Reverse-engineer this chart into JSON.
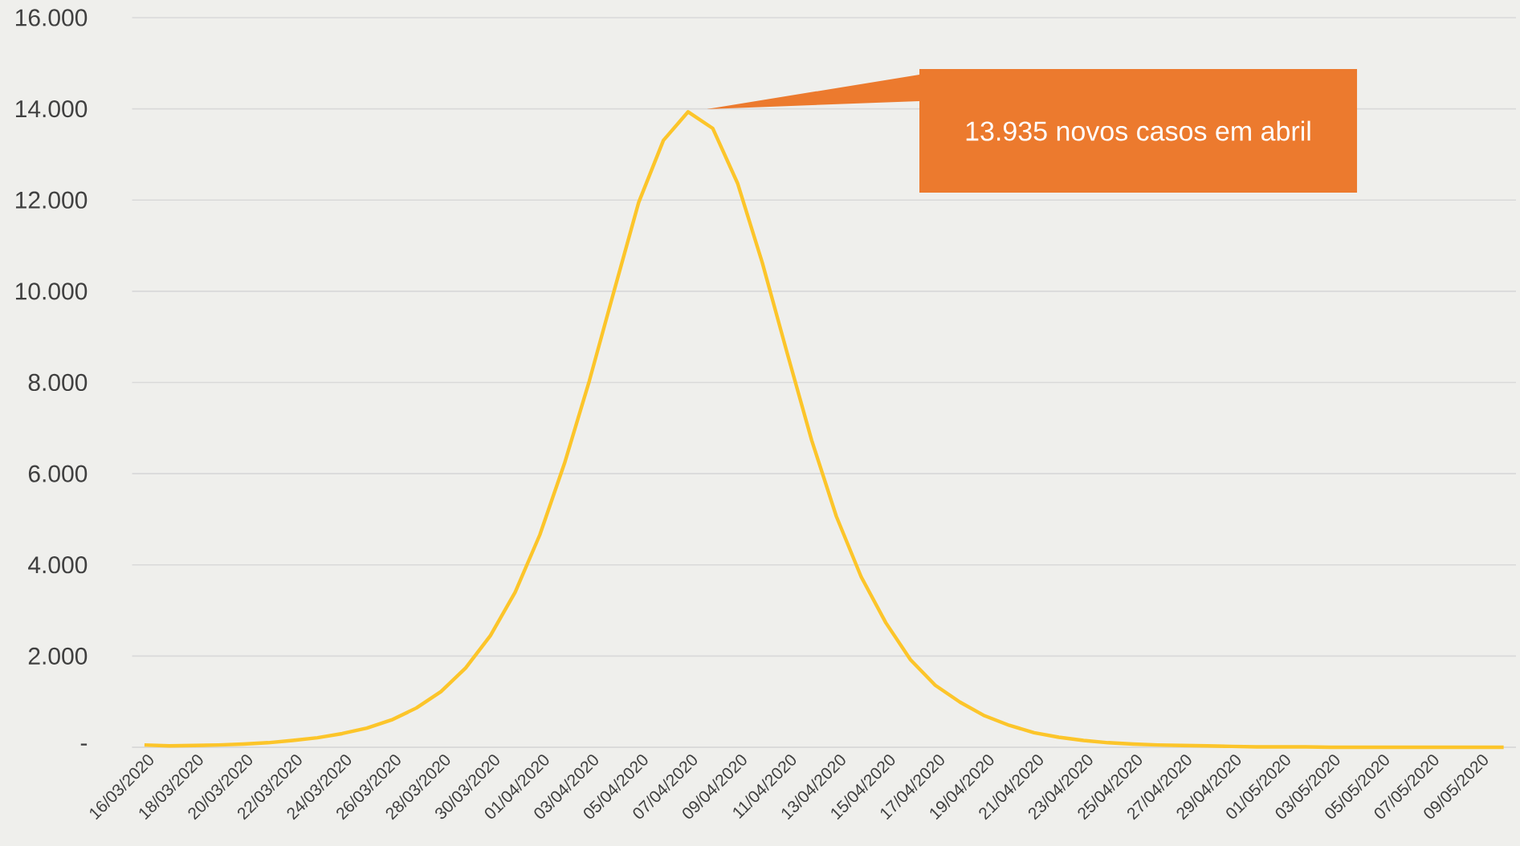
{
  "chart_data": {
    "type": "line",
    "categories": [
      "16/03/2020",
      null,
      "18/03/2020",
      null,
      "20/03/2020",
      null,
      "22/03/2020",
      null,
      "24/03/2020",
      null,
      "26/03/2020",
      null,
      "28/03/2020",
      null,
      "30/03/2020",
      null,
      "01/04/2020",
      null,
      "03/04/2020",
      null,
      "05/04/2020",
      null,
      "07/04/2020",
      null,
      "09/04/2020",
      null,
      "11/04/2020",
      null,
      "13/04/2020",
      null,
      "15/04/2020",
      null,
      "17/04/2020",
      null,
      "19/04/2020",
      null,
      "21/04/2020",
      null,
      "23/04/2020",
      null,
      "25/04/2020",
      null,
      "27/04/2020",
      null,
      "29/04/2020",
      null,
      "01/05/2020",
      null,
      "03/05/2020",
      null,
      "05/05/2020",
      null,
      "07/05/2020",
      null,
      "09/05/2020",
      null
    ],
    "values": [
      50,
      30,
      40,
      50,
      70,
      100,
      150,
      210,
      300,
      420,
      600,
      860,
      1220,
      1740,
      2450,
      3400,
      4660,
      6230,
      8030,
      10000,
      11950,
      13310,
      13935,
      13570,
      12370,
      10630,
      8660,
      6730,
      5060,
      3740,
      2730,
      1920,
      1360,
      990,
      690,
      480,
      320,
      220,
      150,
      100,
      70,
      50,
      40,
      30,
      20,
      10,
      10,
      10,
      0,
      0,
      0,
      0,
      0,
      0,
      0,
      0
    ],
    "color": "#fcc52a",
    "ylim": [
      0,
      16000
    ],
    "yticks": [
      {
        "value": 0,
        "label": "-"
      },
      {
        "value": 2000,
        "label": "2.000"
      },
      {
        "value": 4000,
        "label": "4.000"
      },
      {
        "value": 6000,
        "label": "6.000"
      },
      {
        "value": 8000,
        "label": "8.000"
      },
      {
        "value": 10000,
        "label": "10.000"
      },
      {
        "value": 12000,
        "label": "12.000"
      },
      {
        "value": 14000,
        "label": "14.000"
      },
      {
        "value": 16000,
        "label": "16.000"
      }
    ],
    "grid": "y",
    "annotations": [
      "13.935 novos casos em abril"
    ]
  }
}
